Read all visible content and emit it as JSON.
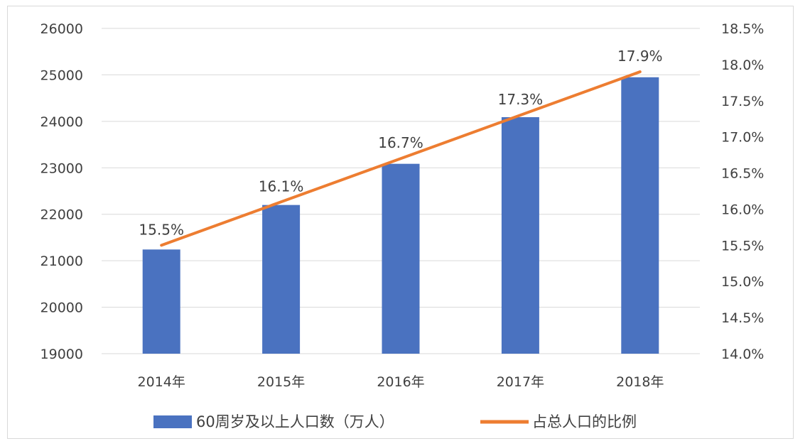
{
  "chart_data": {
    "type": "bar+line",
    "categories": [
      "2014年",
      "2015年",
      "2016年",
      "2017年",
      "2018年"
    ],
    "series": [
      {
        "name": "60周岁及以上人口数（万人）",
        "type": "bar",
        "axis": "left",
        "color": "#4a72c0",
        "values": [
          21242,
          22200,
          23086,
          24090,
          24949
        ]
      },
      {
        "name": "占总人口的比例",
        "type": "line",
        "axis": "right",
        "color": "#ed7d31",
        "values": [
          15.5,
          16.1,
          16.7,
          17.3,
          17.9
        ],
        "labels": [
          "15.5%",
          "16.1%",
          "16.7%",
          "17.3%",
          "17.9%"
        ]
      }
    ],
    "y_left": {
      "min": 19000,
      "max": 26000,
      "ticks": [
        "19000",
        "20000",
        "21000",
        "22000",
        "23000",
        "24000",
        "25000",
        "26000"
      ]
    },
    "y_right": {
      "min": 14.0,
      "max": 18.5,
      "ticks": [
        "14.0%",
        "14.5%",
        "15.0%",
        "15.5%",
        "16.0%",
        "16.5%",
        "17.0%",
        "17.5%",
        "18.0%",
        "18.5%"
      ]
    },
    "grid": true,
    "legend_position": "bottom"
  }
}
